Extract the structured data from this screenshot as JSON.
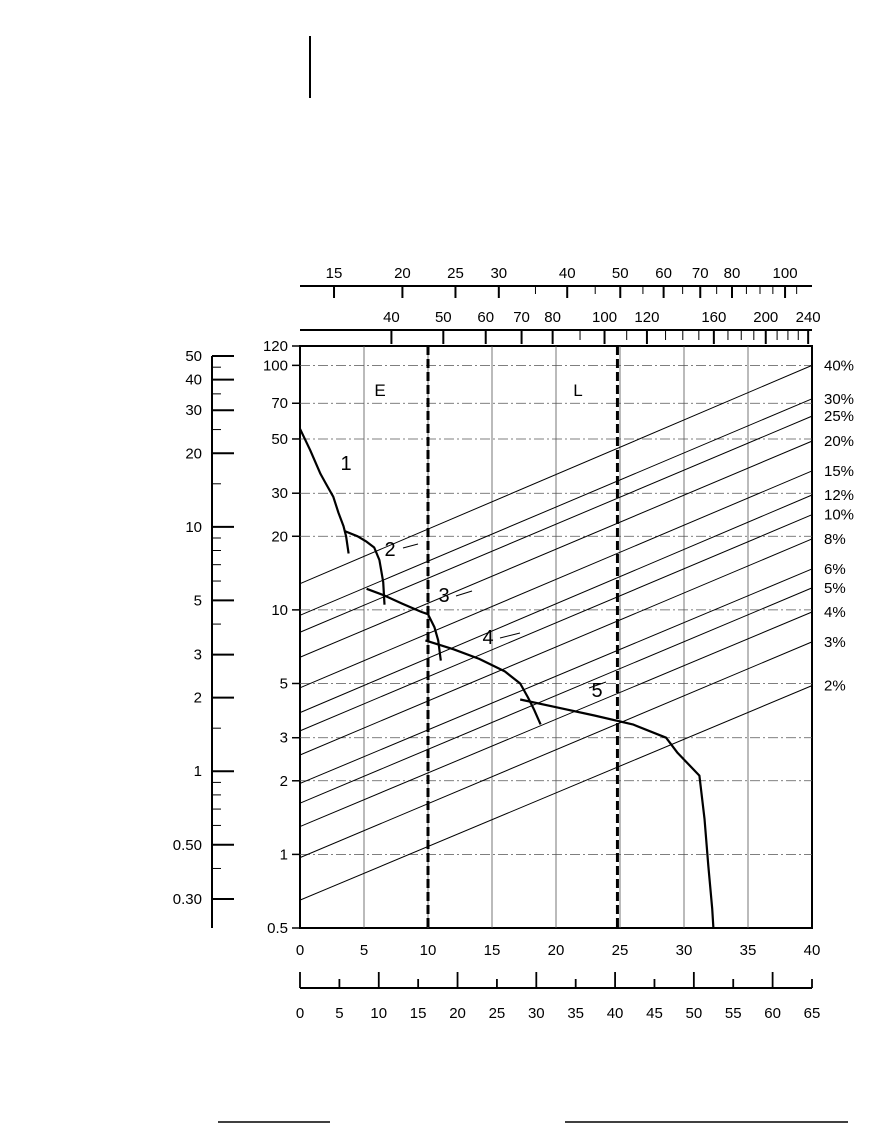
{
  "chart_data": {
    "type": "line",
    "title": "",
    "xlabel": "",
    "ylabel": "",
    "grid": true,
    "legend": "none",
    "xlim": [
      0,
      40
    ],
    "ylim_log": [
      0.5,
      120
    ],
    "bottom_axis": {
      "ticks": [
        0,
        5,
        10,
        15,
        20,
        25,
        30,
        35,
        40
      ],
      "labels": [
        "0",
        "5",
        "10",
        "15",
        "20",
        "25",
        "30",
        "35",
        "40"
      ]
    },
    "bottom_axis_2": {
      "ticks": [
        0,
        5,
        10,
        15,
        20,
        25,
        30,
        35,
        40,
        45,
        50,
        55,
        60,
        65
      ],
      "labels": [
        "0",
        "5",
        "10",
        "15",
        "20",
        "25",
        "30",
        "35",
        "40",
        "45",
        "50",
        "55",
        "60",
        "65"
      ]
    },
    "top_axis_1": {
      "labels": [
        "15",
        "20",
        "25",
        "30",
        "40",
        "50",
        "60",
        "70",
        "80",
        "100"
      ]
    },
    "top_axis_2": {
      "labels": [
        "40",
        "50",
        "60",
        "70",
        "80",
        "100",
        "120",
        "160",
        "200",
        "240"
      ]
    },
    "left_axis": {
      "ticks": [
        0.5,
        1,
        2,
        3,
        5,
        10,
        20,
        30,
        50,
        70,
        100,
        120
      ],
      "labels": [
        "0.5",
        "1",
        "2",
        "3",
        "5",
        "10",
        "20",
        "30",
        "50",
        "70",
        "100",
        "120"
      ]
    },
    "far_left_axis": {
      "labels": [
        "50",
        "40",
        "30",
        "20",
        "10",
        "5",
        "3",
        "2",
        "1",
        "0.50",
        "0.30"
      ]
    },
    "zone_lines": [
      {
        "label": "E",
        "x": 10
      },
      {
        "label": "L",
        "x": 24.8
      }
    ],
    "percent_lines": [
      {
        "label": "40%",
        "y_at_x0": 12.8,
        "y_at_x40": 100
      },
      {
        "label": "30%",
        "y_at_x0": 9.5,
        "y_at_x40": 73
      },
      {
        "label": "25%",
        "y_at_x0": 8.1,
        "y_at_x40": 62
      },
      {
        "label": "20%",
        "y_at_x0": 6.4,
        "y_at_x40": 49
      },
      {
        "label": "15%",
        "y_at_x0": 4.8,
        "y_at_x40": 37
      },
      {
        "label": "12%",
        "y_at_x0": 3.8,
        "y_at_x40": 29.5
      },
      {
        "label": "10%",
        "y_at_x0": 3.2,
        "y_at_x40": 24.5
      },
      {
        "label": "8%",
        "y_at_x0": 2.55,
        "y_at_x40": 19.5
      },
      {
        "label": "6%",
        "y_at_x0": 1.95,
        "y_at_x40": 14.7
      },
      {
        "label": "5%",
        "y_at_x0": 1.62,
        "y_at_x40": 12.3
      },
      {
        "label": "4%",
        "y_at_x0": 1.3,
        "y_at_x40": 9.8
      },
      {
        "label": "3%",
        "y_at_x0": 0.97,
        "y_at_x40": 7.4
      },
      {
        "label": "2%",
        "y_at_x0": 0.65,
        "y_at_x40": 4.9
      }
    ],
    "series": [
      {
        "name": "1",
        "points": [
          [
            0,
            55
          ],
          [
            0.8,
            45
          ],
          [
            1.6,
            36
          ],
          [
            2,
            33
          ],
          [
            2.6,
            29
          ],
          [
            3,
            25
          ],
          [
            3.4,
            22
          ],
          [
            3.6,
            20
          ],
          [
            3.8,
            17
          ]
        ]
      },
      {
        "name": "2",
        "points": [
          [
            3.5,
            21
          ],
          [
            4.5,
            20
          ],
          [
            5.2,
            19
          ],
          [
            5.8,
            18
          ],
          [
            6.2,
            16
          ],
          [
            6.5,
            13
          ],
          [
            6.6,
            10.5
          ]
        ]
      },
      {
        "name": "3",
        "points": [
          [
            5.2,
            12.2
          ],
          [
            6.5,
            11.5
          ],
          [
            8,
            10.6
          ],
          [
            9.5,
            9.8
          ],
          [
            10,
            9.6
          ],
          [
            10.5,
            8.5
          ],
          [
            10.8,
            7.5
          ],
          [
            11,
            6.2
          ]
        ]
      },
      {
        "name": "4",
        "points": [
          [
            9.8,
            7.5
          ],
          [
            12,
            6.9
          ],
          [
            14,
            6.3
          ],
          [
            16,
            5.6
          ],
          [
            17.2,
            5.0
          ],
          [
            17.8,
            4.4
          ],
          [
            18.3,
            3.9
          ],
          [
            18.8,
            3.4
          ]
        ]
      },
      {
        "name": "5",
        "points": [
          [
            17.2,
            4.3
          ],
          [
            20,
            4.0
          ],
          [
            23,
            3.7
          ],
          [
            26,
            3.4
          ],
          [
            28.6,
            3.0
          ],
          [
            29.5,
            2.6
          ],
          [
            31.2,
            2.1
          ],
          [
            31.6,
            1.4
          ],
          [
            31.9,
            0.9
          ],
          [
            32.2,
            0.6
          ],
          [
            32.3,
            0.5
          ]
        ]
      }
    ],
    "zone_labels": [
      "E",
      "L"
    ]
  }
}
